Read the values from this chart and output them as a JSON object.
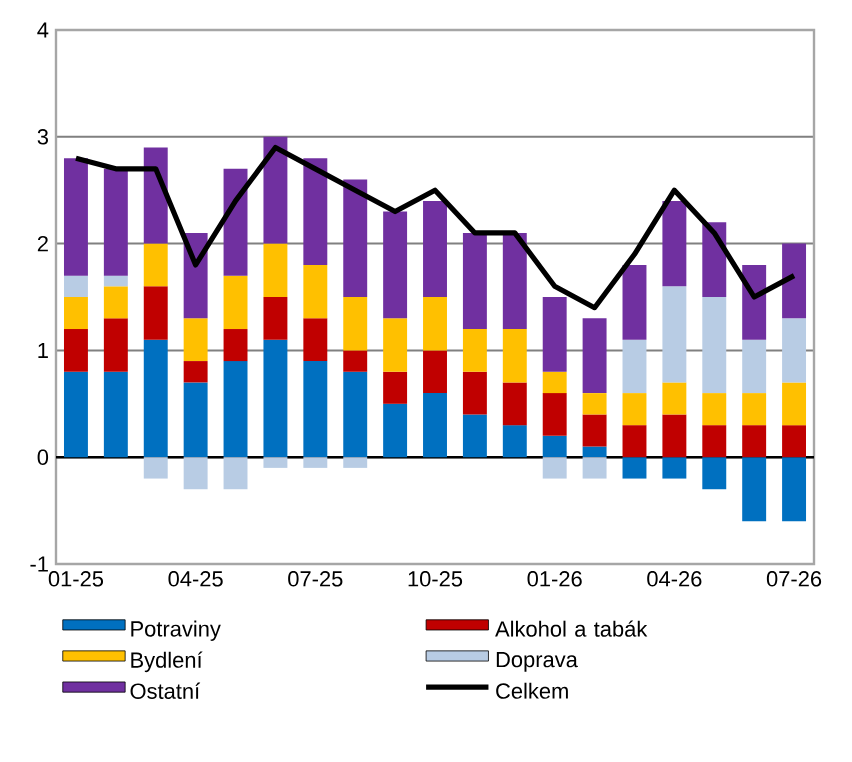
{
  "chart_data": {
    "type": "bar",
    "stacked": true,
    "categories": [
      "01-25",
      null,
      null,
      "04-25",
      null,
      null,
      "07-25",
      null,
      null,
      "10-25",
      null,
      null,
      "01-26",
      null,
      null,
      "04-26",
      null,
      null,
      "07-26"
    ],
    "series": [
      {
        "name": "Potraviny",
        "color": "#0070c0",
        "values": [
          0.8,
          0.8,
          1.1,
          0.7,
          0.9,
          1.1,
          0.9,
          0.8,
          0.5,
          0.6,
          0.4,
          0.3,
          0.2,
          0.1,
          -0.2,
          -0.2,
          -0.3,
          -0.6,
          -0.6
        ]
      },
      {
        "name": "Alkohol a tabák",
        "color": "#c00000",
        "values": [
          0.4,
          0.5,
          0.5,
          0.2,
          0.3,
          0.4,
          0.4,
          0.2,
          0.3,
          0.4,
          0.4,
          0.4,
          0.4,
          0.3,
          0.3,
          0.4,
          0.3,
          0.3,
          0.3
        ]
      },
      {
        "name": "Bydlení",
        "color": "#ffc000",
        "values": [
          0.3,
          0.3,
          0.4,
          0.4,
          0.5,
          0.5,
          0.5,
          0.5,
          0.5,
          0.5,
          0.4,
          0.5,
          0.2,
          0.2,
          0.3,
          0.3,
          0.3,
          0.3,
          0.4
        ]
      },
      {
        "name": "Doprava",
        "color": "#b8cce4",
        "values": [
          0.2,
          0.1,
          -0.2,
          -0.3,
          -0.3,
          -0.1,
          -0.1,
          -0.1,
          0,
          0,
          0,
          0,
          -0.2,
          -0.2,
          0.5,
          0.9,
          0.9,
          0.5,
          0.6
        ]
      },
      {
        "name": "Ostatní",
        "color": "#7030a0",
        "values": [
          1.1,
          1.0,
          0.9,
          0.8,
          1.0,
          1.0,
          1.0,
          1.1,
          1.0,
          0.9,
          0.9,
          0.9,
          0.7,
          0.7,
          0.7,
          0.8,
          0.7,
          0.7,
          0.7
        ]
      },
      {
        "name": "Celkem",
        "type": "line",
        "color": "#000000",
        "values": [
          2.8,
          2.7,
          2.7,
          1.8,
          2.4,
          2.9,
          2.7,
          2.5,
          2.3,
          2.5,
          2.1,
          2.1,
          1.6,
          1.4,
          1.9,
          2.5,
          2.1,
          1.5,
          1.7
        ]
      }
    ],
    "ylim": [
      -1,
      4
    ],
    "yticks": [
      -1,
      0,
      1,
      2,
      3,
      4
    ],
    "grid": "y",
    "legend": "bottom"
  }
}
